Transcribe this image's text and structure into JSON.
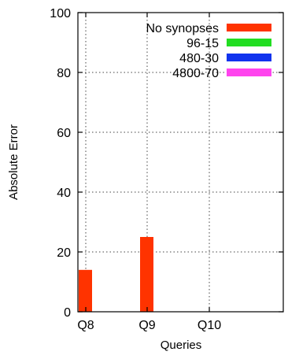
{
  "chart_data": {
    "type": "bar",
    "title": "",
    "xlabel": "Queries",
    "ylabel": "Absolute Error",
    "categories": [
      "Q8",
      "Q9",
      "Q10"
    ],
    "ylim": [
      0,
      100
    ],
    "yticks": [
      "0",
      "20",
      "40",
      "60",
      "80",
      "100"
    ],
    "grid": true,
    "legend_position": "top-right",
    "series": [
      {
        "name": "No synopses",
        "color": "#ff3300",
        "values": [
          14,
          25,
          0
        ]
      },
      {
        "name": "96-15",
        "color": "#22dd22",
        "values": [
          0,
          0,
          0
        ]
      },
      {
        "name": "480-30",
        "color": "#1133ee",
        "values": [
          0,
          0,
          0
        ]
      },
      {
        "name": "4800-70",
        "color": "#ff44ee",
        "values": [
          0,
          0,
          0
        ]
      }
    ]
  }
}
